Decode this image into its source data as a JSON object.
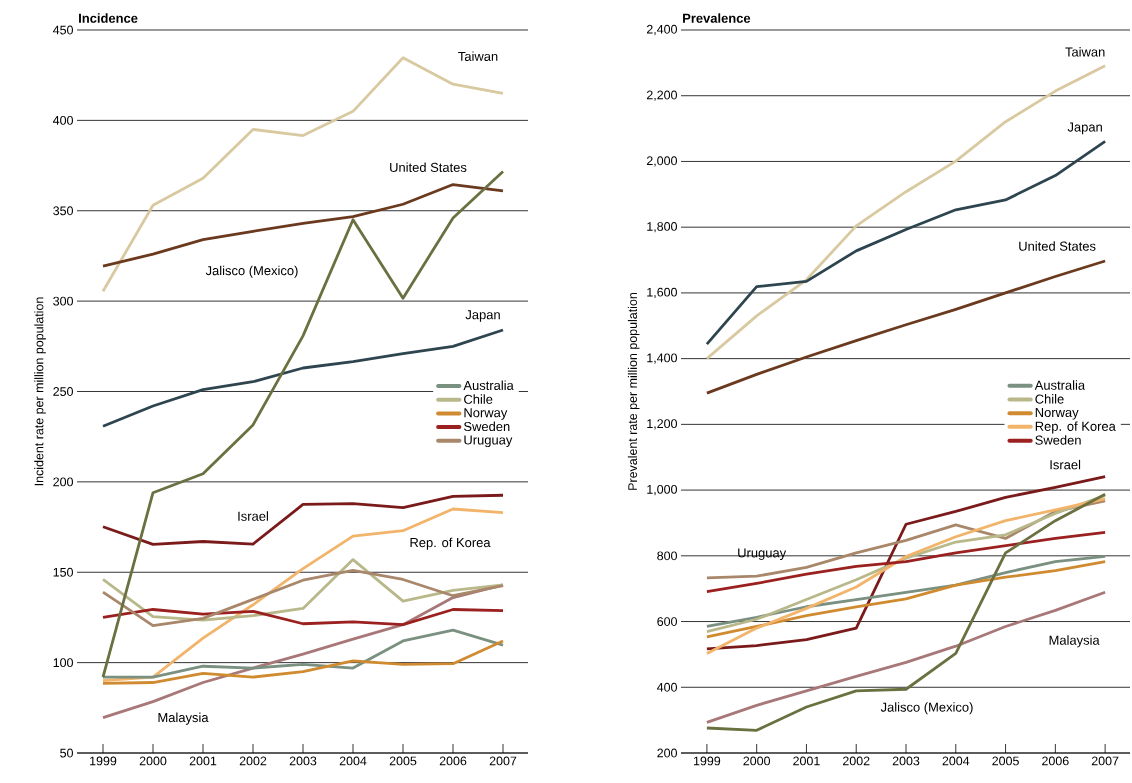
{
  "chart_data": [
    {
      "type": "line",
      "title": "Incidence",
      "ylabel": "Incident rate per million population",
      "categories": [
        "1999",
        "2000",
        "2001",
        "2002",
        "2003",
        "2004",
        "2005",
        "2006",
        "2007"
      ],
      "ylim": [
        50,
        450
      ],
      "yticks": [
        50,
        100,
        150,
        200,
        250,
        300,
        350,
        400,
        450
      ],
      "grid": "y",
      "legend": "right",
      "series": [
        {
          "name": "Taiwan",
          "color": "#d9c9a0",
          "values": [
            305.5,
            353,
            368,
            395,
            391.6,
            405,
            434.6,
            420,
            415
          ]
        },
        {
          "name": "United States",
          "color": "#6b3a1e",
          "values": [
            319.4,
            326,
            334,
            338.6,
            343,
            346.7,
            353.6,
            364.5,
            361
          ]
        },
        {
          "name": "Japan",
          "color": "#2e4550",
          "values": [
            230.8,
            242,
            251,
            255.4,
            263,
            266.5,
            271,
            275,
            284
          ]
        },
        {
          "name": "Israel",
          "color": "#7a1a1a",
          "values": [
            175.2,
            165.4,
            167,
            165.6,
            187.5,
            188,
            185.7,
            192,
            192.6
          ]
        },
        {
          "name": "Rep. of Korea",
          "color": "#f2b46a",
          "values": [
            90,
            92,
            113.6,
            132,
            152,
            170,
            173,
            185,
            183
          ]
        },
        {
          "name": "Malaysia",
          "color": "#a87878",
          "values": [
            69.6,
            78.4,
            89,
            97,
            104.7,
            113,
            121,
            136,
            143
          ]
        },
        {
          "name": "Australia",
          "color": "#7a9080",
          "values": [
            92,
            92,
            98,
            97,
            99,
            97,
            112,
            118,
            109.7
          ]
        },
        {
          "name": "Chile",
          "color": "#b8b88a",
          "values": [
            146,
            125.5,
            123.5,
            126,
            130,
            157,
            134,
            140,
            143
          ]
        },
        {
          "name": "Norway",
          "color": "#d08a30",
          "values": [
            88.5,
            89,
            94,
            92,
            95,
            101,
            99,
            99.4,
            112
          ]
        },
        {
          "name": "Sweden",
          "color": "#9b2020",
          "values": [
            125,
            129.4,
            126.8,
            128.4,
            121.5,
            122.5,
            121,
            129.4,
            128.8
          ]
        },
        {
          "name": "Uruguay",
          "color": "#a8876a",
          "values": [
            139,
            120.5,
            124.5,
            135,
            145.6,
            151,
            146,
            137,
            142.6
          ]
        },
        {
          "name": "Jalisco (Mexico)",
          "color": "#6b7040",
          "values": [
            92,
            194,
            204.5,
            231.5,
            280.8,
            345,
            301.6,
            346,
            371.7
          ]
        }
      ]
    },
    {
      "type": "line",
      "title": "Prevalence",
      "ylabel": "Prevalent rate per million population",
      "categories": [
        "1999",
        "2000",
        "2001",
        "2002",
        "2003",
        "2004",
        "2005",
        "2006",
        "2007"
      ],
      "ylim": [
        200,
        2400
      ],
      "yticks": [
        200,
        400,
        600,
        800,
        {
          "value": 1000,
          "label": "1,000"
        },
        {
          "value": 1200,
          "label": "1,200"
        },
        {
          "value": 1400,
          "label": "1,400"
        },
        {
          "value": 1600,
          "label": "1,600"
        },
        {
          "value": 1800,
          "label": "1,800"
        },
        {
          "value": 2000,
          "label": "2,000"
        },
        {
          "value": 2200,
          "label": "2,200"
        },
        {
          "value": 2400,
          "label": "2,400"
        }
      ],
      "grid": "y",
      "legend": "right",
      "series": [
        {
          "name": "Taiwan",
          "color": "#d9c9a0",
          "values": [
            1400,
            1530,
            1640,
            1804,
            1908,
            2001,
            2121,
            2214,
            2291
          ]
        },
        {
          "name": "Japan",
          "color": "#2e4550",
          "values": [
            1444,
            1619,
            1635,
            1728,
            1793,
            1853,
            1883,
            1957,
            2061
          ]
        },
        {
          "name": "United States",
          "color": "#6b3a1e",
          "values": [
            1295,
            1352,
            1405,
            1455,
            1503,
            1550,
            1600,
            1650,
            1697
          ]
        },
        {
          "name": "Israel",
          "color": "#7a1a1a",
          "values": [
            517,
            527,
            545,
            580,
            896,
            935,
            978,
            1008,
            1041
          ]
        },
        {
          "name": "Uruguay",
          "color": "#a8876a",
          "values": [
            733,
            738,
            765,
            809,
            847,
            894,
            853,
            935,
            967
          ]
        },
        {
          "name": "Malaysia",
          "color": "#a87878",
          "values": [
            293,
            345,
            389,
            433,
            476,
            525,
            585,
            634,
            689
          ]
        },
        {
          "name": "Australia",
          "color": "#7a9080",
          "values": [
            585,
            613,
            645,
            667,
            689,
            711,
            749,
            782,
            798
          ]
        },
        {
          "name": "Chile",
          "color": "#b8b88a",
          "values": [
            569,
            607,
            667,
            727,
            793,
            842,
            864,
            929,
            984
          ]
        },
        {
          "name": "Norway",
          "color": "#d08a30",
          "values": [
            553,
            585,
            618,
            645,
            669,
            711,
            735,
            755,
            782
          ]
        },
        {
          "name": "Rep. of Korea",
          "color": "#f2b46a",
          "values": [
            503,
            580,
            640,
            705,
            798,
            858,
            907,
            940,
            973
          ]
        },
        {
          "name": "Sweden",
          "color": "#9b2020",
          "values": [
            691,
            716,
            744,
            768,
            782,
            809,
            831,
            853,
            871
          ]
        },
        {
          "name": "Jalisco (Mexico)",
          "color": "#6b7040",
          "values": [
            276,
            269,
            340,
            389,
            394,
            503,
            809,
            907,
            987
          ]
        }
      ]
    }
  ]
}
